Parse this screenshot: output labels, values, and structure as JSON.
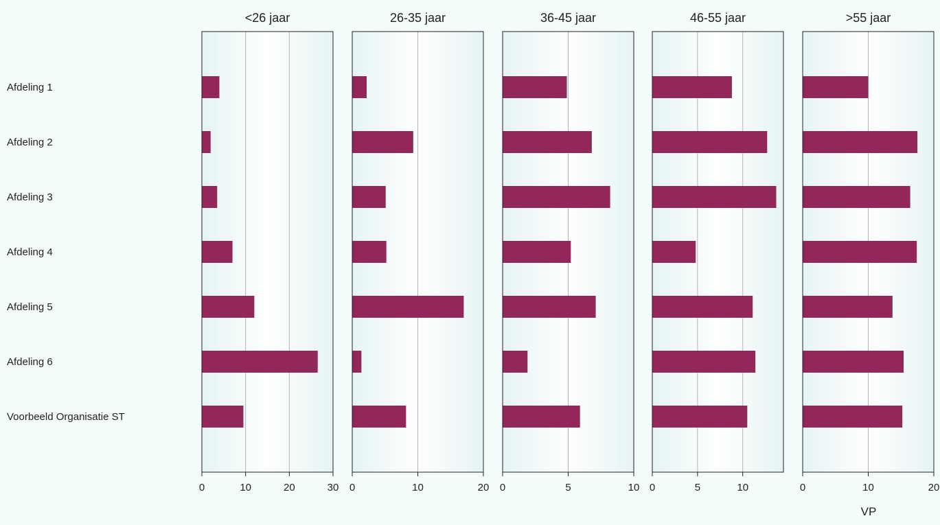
{
  "chart_data": {
    "type": "bar",
    "orientation": "horizontal",
    "layout": "small-multiples",
    "bar_color": "#93275a",
    "panel_border_color": "#222222",
    "grid": true,
    "categories": [
      "Afdeling 1",
      "Afdeling 2",
      "Afdeling 3",
      "Afdeling 4",
      "Afdeling 5",
      "Afdeling 6",
      "Voorbeeld Organisatie ST"
    ],
    "xlabel": "VP",
    "panels": [
      {
        "title": "<26 jaar",
        "xlim": [
          0,
          30
        ],
        "ticks": [
          0,
          10,
          20,
          30
        ],
        "values": [
          4,
          2,
          3.5,
          7,
          12,
          26.5,
          9.5
        ]
      },
      {
        "title": "26-35 jaar",
        "xlim": [
          0,
          20
        ],
        "ticks": [
          0,
          10,
          20
        ],
        "values": [
          2.2,
          9.3,
          5.1,
          5.2,
          17,
          1.4,
          8.2
        ]
      },
      {
        "title": "36-45 jaar",
        "xlim": [
          0,
          10
        ],
        "ticks": [
          0,
          5,
          10
        ],
        "values": [
          4.9,
          6.8,
          8.2,
          5.2,
          7.1,
          1.9,
          5.9
        ]
      },
      {
        "title": "46-55 jaar",
        "xlim": [
          0,
          14.5
        ],
        "ticks": [
          0,
          5,
          10
        ],
        "values": [
          8.8,
          12.7,
          13.7,
          4.8,
          11.1,
          11.4,
          10.5
        ]
      },
      {
        "title": ">55 jaar",
        "xlim": [
          0,
          20
        ],
        "ticks": [
          0,
          10,
          20
        ],
        "values": [
          10,
          17.5,
          16.4,
          17.4,
          13.7,
          15.4,
          15.2
        ]
      }
    ]
  }
}
